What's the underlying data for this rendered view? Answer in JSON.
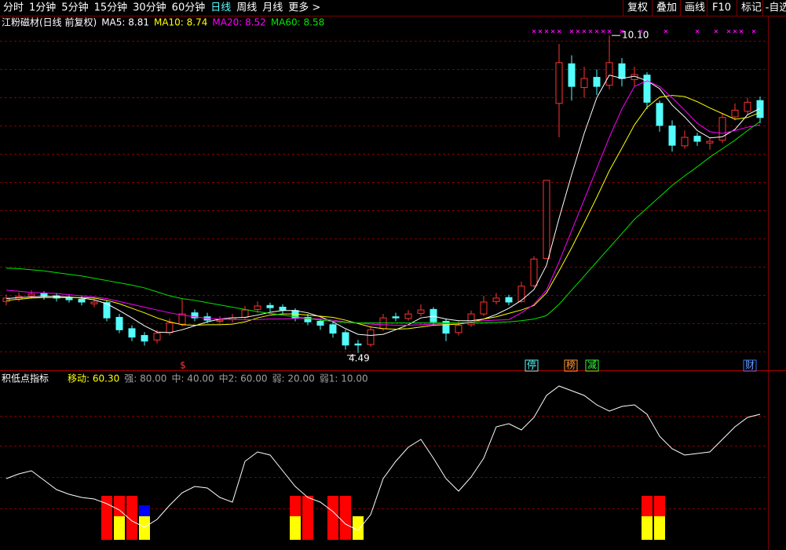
{
  "toolbar": {
    "tabs": [
      "分时",
      "1分钟",
      "5分钟",
      "15分钟",
      "30分钟",
      "60分钟",
      "日线",
      "周线",
      "月线",
      "更多 >"
    ],
    "active": 6,
    "buttons": [
      "复权",
      "叠加",
      "画线",
      "F10",
      "标记",
      "-自选"
    ]
  },
  "chart_data": [
    {
      "type": "candlestick",
      "title": "江粉磁材(日线 前复权)",
      "up_color": "#ff3232",
      "down_color": "#54fcfc",
      "ylim": [
        4.35,
        10.38
      ],
      "open": [
        5.4,
        5.44,
        5.5,
        5.54,
        5.5,
        5.47,
        5.44,
        5.36,
        5.38,
        5.12,
        4.92,
        4.8,
        4.72,
        4.85,
        5.0,
        5.2,
        5.13,
        5.05,
        5.08,
        5.12,
        5.26,
        5.33,
        5.3,
        5.24,
        5.12,
        5.05,
        4.99,
        4.85,
        4.65,
        4.64,
        4.92,
        5.13,
        5.1,
        5.19,
        5.26,
        5.05,
        4.85,
        4.99,
        5.18,
        5.4,
        5.47,
        5.4,
        5.68,
        6.16,
        8.9,
        9.6,
        9.18,
        9.36,
        9.22,
        9.6,
        9.32,
        9.4,
        8.9,
        8.5,
        8.15,
        8.32,
        8.2,
        8.25,
        8.66,
        8.76,
        8.95
      ],
      "high": [
        5.52,
        5.56,
        5.6,
        5.58,
        5.55,
        5.52,
        5.49,
        5.46,
        5.42,
        5.18,
        4.98,
        4.86,
        4.9,
        5.1,
        5.45,
        5.26,
        5.2,
        5.14,
        5.18,
        5.32,
        5.4,
        5.38,
        5.35,
        5.28,
        5.18,
        5.1,
        5.03,
        4.9,
        4.72,
        4.96,
        5.18,
        5.2,
        5.25,
        5.35,
        5.3,
        5.1,
        5.05,
        5.24,
        5.5,
        5.55,
        5.52,
        5.75,
        6.2,
        7.54,
        9.95,
        9.75,
        9.55,
        9.5,
        10.1,
        9.7,
        9.55,
        9.45,
        8.95,
        8.6,
        8.42,
        8.38,
        8.3,
        8.72,
        8.9,
        9.0,
        9.02
      ],
      "low": [
        5.33,
        5.4,
        5.45,
        5.43,
        5.4,
        5.38,
        5.33,
        5.3,
        5.05,
        4.84,
        4.7,
        4.62,
        4.66,
        4.8,
        4.96,
        5.05,
        5.02,
        5.0,
        5.03,
        5.08,
        5.2,
        5.22,
        5.18,
        5.05,
        4.98,
        4.9,
        4.76,
        4.55,
        4.49,
        4.6,
        4.88,
        5.05,
        5.06,
        5.14,
        4.98,
        4.7,
        4.8,
        4.95,
        5.14,
        5.35,
        5.33,
        5.38,
        5.65,
        6.16,
        8.3,
        8.95,
        9.0,
        9.05,
        9.15,
        9.2,
        9.2,
        8.8,
        8.4,
        8.05,
        8.1,
        8.15,
        8.08,
        8.2,
        8.6,
        8.7,
        8.55
      ],
      "close": [
        5.46,
        5.49,
        5.53,
        5.49,
        5.46,
        5.43,
        5.39,
        5.39,
        5.11,
        4.9,
        4.77,
        4.7,
        4.84,
        5.02,
        5.18,
        5.11,
        5.07,
        5.07,
        5.11,
        5.25,
        5.32,
        5.29,
        5.25,
        5.11,
        5.04,
        4.98,
        4.84,
        4.63,
        4.63,
        4.9,
        5.11,
        5.11,
        5.18,
        5.25,
        5.04,
        4.84,
        4.98,
        5.18,
        5.39,
        5.46,
        5.39,
        5.67,
        6.15,
        7.54,
        9.62,
        9.2,
        9.34,
        9.2,
        9.62,
        9.34,
        9.41,
        8.92,
        8.51,
        8.16,
        8.3,
        8.23,
        8.23,
        8.65,
        8.78,
        8.92,
        8.65
      ],
      "series": [
        {
          "name": "MA5: 8.81",
          "color": "#ffffff",
          "values": [
            5.45,
            5.47,
            5.48,
            5.49,
            5.49,
            5.48,
            5.46,
            5.43,
            5.36,
            5.24,
            5.11,
            4.97,
            4.86,
            4.85,
            4.9,
            4.97,
            5.04,
            5.09,
            5.11,
            5.12,
            5.16,
            5.21,
            5.24,
            5.24,
            5.2,
            5.13,
            5.04,
            4.92,
            4.82,
            4.8,
            4.82,
            4.9,
            4.99,
            5.11,
            5.14,
            5.09,
            5.06,
            5.06,
            5.09,
            5.17,
            5.28,
            5.42,
            5.61,
            6.04,
            6.87,
            7.64,
            8.37,
            9.0,
            9.4,
            9.34,
            9.38,
            9.3,
            9.16,
            8.87,
            8.66,
            8.42,
            8.29,
            8.31,
            8.44,
            8.7,
            8.81
          ]
        },
        {
          "name": "MA10: 8.74",
          "color": "#ffff00",
          "values": [
            5.42,
            5.44,
            5.46,
            5.47,
            5.47,
            5.47,
            5.47,
            5.46,
            5.42,
            5.36,
            5.28,
            5.2,
            5.11,
            5.04,
            4.99,
            4.98,
            4.99,
            4.99,
            5.0,
            5.04,
            5.11,
            5.16,
            5.18,
            5.18,
            5.16,
            5.14,
            5.12,
            5.07,
            5.01,
            4.95,
            4.92,
            4.91,
            4.92,
            4.95,
            4.98,
            4.99,
            5.0,
            5.03,
            5.09,
            5.13,
            5.19,
            5.25,
            5.33,
            5.55,
            5.94,
            6.35,
            6.79,
            7.24,
            7.71,
            8.11,
            8.52,
            8.83,
            9.01,
            9.04,
            9.02,
            8.93,
            8.82,
            8.72,
            8.62,
            8.65,
            8.74
          ]
        },
        {
          "name": "MA20: 8.52",
          "color": "#ff00ff",
          "values": [
            5.6,
            5.58,
            5.56,
            5.55,
            5.54,
            5.52,
            5.5,
            5.48,
            5.45,
            5.4,
            5.35,
            5.3,
            5.25,
            5.2,
            5.16,
            5.13,
            5.1,
            5.09,
            5.08,
            5.08,
            5.08,
            5.09,
            5.09,
            5.1,
            5.1,
            5.09,
            5.07,
            5.04,
            5.02,
            5.0,
            4.99,
            4.98,
            4.98,
            4.99,
            5.0,
            5.01,
            5.02,
            5.04,
            5.06,
            5.07,
            5.08,
            5.2,
            5.35,
            5.6,
            6.1,
            6.65,
            7.2,
            7.75,
            8.3,
            8.8,
            9.2,
            9.3,
            9.2,
            9.0,
            8.78,
            8.55,
            8.4,
            8.37,
            8.42,
            8.48,
            8.52
          ]
        },
        {
          "name": "MA60: 8.58",
          "color": "#00e600",
          "values": [
            5.99,
            5.98,
            5.96,
            5.94,
            5.91,
            5.88,
            5.85,
            5.81,
            5.77,
            5.73,
            5.69,
            5.64,
            5.57,
            5.5,
            5.45,
            5.42,
            5.38,
            5.34,
            5.3,
            5.26,
            5.22,
            5.19,
            5.16,
            5.13,
            5.1,
            5.07,
            5.05,
            5.03,
            5.02,
            5.02,
            5.02,
            5.02,
            5.02,
            5.02,
            5.02,
            5.02,
            5.02,
            5.02,
            5.02,
            5.03,
            5.04,
            5.06,
            5.09,
            5.15,
            5.35,
            5.6,
            5.85,
            6.1,
            6.35,
            6.6,
            6.85,
            7.05,
            7.25,
            7.45,
            7.62,
            7.78,
            7.95,
            8.1,
            8.25,
            8.42,
            8.58
          ]
        }
      ],
      "annotations": {
        "high": "10.10",
        "low": "4.49"
      },
      "markers": [
        "$",
        "停",
        "榜",
        "减",
        "财"
      ]
    },
    {
      "type": "line",
      "title": "积低点指标",
      "color": "#ffffff",
      "ylim": [
        0,
        100
      ],
      "legend": [
        {
          "text": "移动: 60.30",
          "color": "#ffff00"
        },
        {
          "text": "强: 80.00",
          "color": "#a0a0a0"
        },
        {
          "text": "中: 40.00",
          "color": "#a0a0a0"
        },
        {
          "text": "中2: 60.00",
          "color": "#a0a0a0"
        },
        {
          "text": "弱: 20.00",
          "color": "#a0a0a0"
        },
        {
          "text": "弱1: 10.00",
          "color": "#a0a0a0"
        }
      ],
      "values": [
        39,
        42,
        44,
        38,
        32,
        29,
        27,
        26,
        23,
        19,
        12,
        8,
        13,
        22,
        30,
        34,
        33,
        27,
        24,
        50,
        56,
        54,
        44,
        34,
        27,
        24,
        18,
        10,
        6,
        16,
        39,
        50,
        59,
        64,
        52,
        39,
        31,
        40,
        52,
        72,
        74,
        70,
        78,
        92,
        98,
        95,
        92,
        86,
        82,
        85,
        86,
        80,
        66,
        58,
        54,
        55,
        56,
        64,
        72,
        78,
        80
      ],
      "bars": [
        {
          "color": "#ff0000",
          "values": [
            null,
            null,
            null,
            null,
            null,
            null,
            null,
            null,
            28,
            28,
            28,
            null,
            null,
            null,
            null,
            null,
            null,
            null,
            null,
            null,
            null,
            null,
            null,
            28,
            28,
            null,
            28,
            28,
            null,
            null,
            null,
            null,
            null,
            null,
            null,
            null,
            null,
            null,
            null,
            null,
            null,
            null,
            null,
            null,
            null,
            null,
            null,
            null,
            null,
            null,
            null,
            28,
            28,
            null,
            null,
            null,
            null,
            null,
            null,
            null,
            null
          ]
        },
        {
          "color": "#ffff00",
          "values": [
            null,
            null,
            null,
            null,
            null,
            null,
            null,
            null,
            null,
            15,
            null,
            15,
            null,
            null,
            null,
            null,
            null,
            null,
            null,
            null,
            null,
            null,
            null,
            15,
            null,
            null,
            null,
            null,
            15,
            null,
            null,
            null,
            null,
            null,
            null,
            null,
            null,
            null,
            null,
            null,
            null,
            null,
            null,
            null,
            null,
            null,
            null,
            null,
            null,
            null,
            null,
            15,
            15,
            null,
            null,
            null,
            null,
            null,
            null,
            null,
            null
          ]
        },
        {
          "color": "#0000ff",
          "values": [
            null,
            null,
            null,
            null,
            null,
            null,
            null,
            null,
            null,
            null,
            null,
            7,
            null,
            null,
            null,
            null,
            null,
            null,
            null,
            null,
            null,
            null,
            null,
            null,
            null,
            null,
            null,
            null,
            null,
            null,
            null,
            null,
            null,
            null,
            null,
            null,
            null,
            null,
            null,
            null,
            null,
            null,
            null,
            null,
            null,
            null,
            null,
            null,
            null,
            null,
            null,
            null,
            null,
            null,
            null,
            null,
            null,
            null,
            null,
            null,
            null
          ]
        }
      ]
    }
  ]
}
